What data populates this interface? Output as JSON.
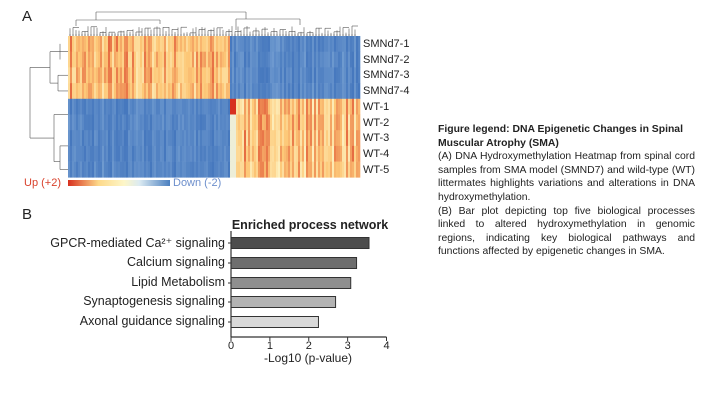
{
  "panel_a_letter": "A",
  "panel_b_letter": "B",
  "chart_data": [
    {
      "type": "heatmap",
      "rows": [
        "SMNd7-1",
        "SMNd7-2",
        "SMNd7-3",
        "SMNd7-4",
        "WT-1",
        "WT-2",
        "WT-3",
        "WT-4",
        "WT-5"
      ],
      "colorbar": {
        "high_label": "Up (+2)",
        "low_label": "Down (-2)",
        "range": [
          2,
          -2
        ],
        "colors": [
          "#d7301f",
          "#fdd98a",
          "#fdf6c8",
          "#dcebf2",
          "#4a7fc0"
        ]
      },
      "pattern": "SMNd7 rows up (red/yellow) in left gene cluster and down (blue) in right cluster; WT rows the reverse",
      "dendrograms": true
    },
    {
      "type": "bar",
      "orientation": "horizontal",
      "title": "Enriched process network",
      "categories": [
        "GPCR-mediated Ca²⁺ signaling",
        "Calcium signaling",
        "Lipid Metabolism",
        "Synaptogenesis signaling",
        "Axonal guidance signaling"
      ],
      "values": [
        3.55,
        3.23,
        3.08,
        2.69,
        2.25
      ],
      "colors": [
        "#4d4d4d",
        "#6e6e6e",
        "#8f8f8f",
        "#b3b3b3",
        "#d9d9d9"
      ],
      "xlabel": "-Log10 (p-value)",
      "xlim": [
        0,
        4
      ],
      "xticks": [
        "0",
        "1",
        "2",
        "3",
        "4"
      ],
      "grid": false
    }
  ],
  "legend": {
    "title": "Figure legend: DNA Epigenetic Changes in Spinal Muscular Atrophy (SMA)",
    "para_a": "(A) DNA Hydroxymethylation Heatmap from spinal cord samples from SMA model (SMND7) and wild-type (WT) littermates highlights variations and alterations in DNA hydroxymethylation.",
    "para_b": "(B) Bar plot depicting top five biological processes linked to altered hydroxymethylation in genomic regions, indicating key biological pathways and functions affected by epigenetic changes in SMA."
  }
}
